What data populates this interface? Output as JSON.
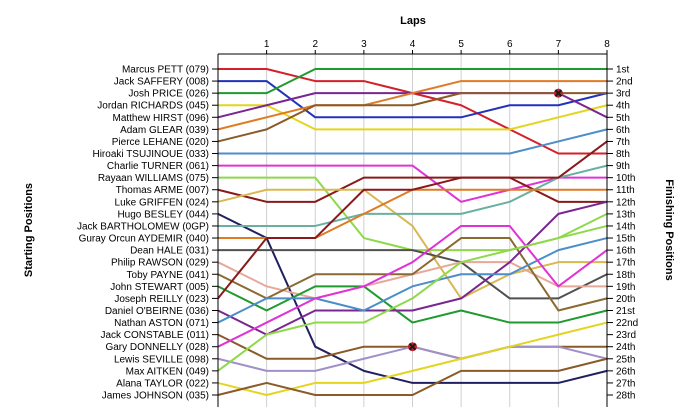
{
  "chart_data": {
    "type": "line",
    "title": "",
    "xlabel": "Laps",
    "ylabel_left": "Starting Positions",
    "ylabel_right": "Finishing Positions",
    "x": [
      0,
      1,
      2,
      3,
      4,
      5,
      6,
      7,
      8
    ],
    "x_tick_labels": [
      "1",
      "2",
      "3",
      "4",
      "5",
      "6",
      "7",
      "8"
    ],
    "xlim": [
      0,
      8
    ],
    "ylim": [
      1,
      28
    ],
    "y_reversed": true,
    "grid": "vertical",
    "finishing_labels": [
      "1st",
      "2nd",
      "3rd",
      "4th",
      "5th",
      "6th",
      "7th",
      "8th",
      "9th",
      "10th",
      "11th",
      "12th",
      "13th",
      "14th",
      "15th",
      "16th",
      "17th",
      "18th",
      "19th",
      "20th",
      "21st",
      "22nd",
      "23rd",
      "24th",
      "25th",
      "26th",
      "27th",
      "28th"
    ],
    "series": [
      {
        "name": "Marcus PETT (079)",
        "color": "#d4202a",
        "positions": [
          1,
          1,
          2,
          2,
          3,
          4,
          6,
          8,
          8
        ]
      },
      {
        "name": "Jack SAFFERY (008)",
        "color": "#2233bb",
        "positions": [
          2,
          2,
          5,
          5,
          5,
          5,
          4,
          4,
          3
        ]
      },
      {
        "name": "Josh PRICE (026)",
        "color": "#1f9a2e",
        "positions": [
          3,
          3,
          1,
          1,
          1,
          1,
          1,
          1,
          1
        ]
      },
      {
        "name": "Jordan RICHARDS (045)",
        "color": "#e3d51f",
        "positions": [
          4,
          4,
          6,
          6,
          6,
          6,
          6,
          5,
          4
        ]
      },
      {
        "name": "Matthew HIRST (096)",
        "color": "#7a2690",
        "positions": [
          5,
          4,
          3,
          3,
          3,
          3,
          3,
          3,
          5
        ]
      },
      {
        "name": "Adam GLEAR (039)",
        "color": "#e07a25",
        "positions": [
          6,
          5,
          4,
          4,
          3,
          2,
          2,
          2,
          2
        ]
      },
      {
        "name": "Pierce LEHANE (020)",
        "color": "#8a5a28",
        "positions": [
          7,
          6,
          4,
          4,
          4,
          3,
          3,
          3,
          3
        ],
        "marker": {
          "x": 7,
          "type": "x"
        }
      },
      {
        "name": "Hiroaki TSUJINOUE (033)",
        "color": "#4b8ec9",
        "positions": [
          8,
          8,
          8,
          8,
          8,
          8,
          8,
          7,
          6
        ]
      },
      {
        "name": "Charlie TURNER (061)",
        "color": "#e032d8",
        "positions": [
          9,
          9,
          9,
          9,
          9,
          12,
          11,
          10,
          10
        ]
      },
      {
        "name": "Rayaan WILLIAMS (075)",
        "color": "#8ed84a",
        "positions": [
          10,
          10,
          10,
          15,
          16,
          16,
          16,
          15,
          13
        ]
      },
      {
        "name": "Thomas ARME (007)",
        "color": "#8a1a1a",
        "positions": [
          11,
          12,
          12,
          10,
          10,
          10,
          10,
          12,
          12
        ]
      },
      {
        "name": "Luke GRIFFEN (024)",
        "color": "#d8b850",
        "positions": [
          12,
          11,
          11,
          11,
          14,
          20,
          18,
          17,
          17
        ]
      },
      {
        "name": "Hugo BESLEY (044)",
        "color": "#202060",
        "positions": [
          13,
          15,
          24,
          26,
          27,
          27,
          27,
          27,
          26
        ]
      },
      {
        "name": "Jack BARTHOLOMEW (0GP)",
        "color": "#6ab0a0",
        "positions": [
          14,
          14,
          14,
          13,
          13,
          13,
          12,
          10,
          9
        ]
      },
      {
        "name": "Guray Orcun AYDEMIR (040)",
        "color": "#e07a25",
        "positions": [
          15,
          15,
          15,
          13,
          11,
          11,
          11,
          11,
          11
        ]
      },
      {
        "name": "Dean HALE (031)",
        "color": "#505050",
        "positions": [
          16,
          16,
          16,
          16,
          16,
          17,
          20,
          20,
          18
        ]
      },
      {
        "name": "Philip RAWSON (029)",
        "color": "#e8a898",
        "positions": [
          17,
          19,
          20,
          19,
          18,
          17,
          17,
          19,
          19
        ]
      },
      {
        "name": "Toby PAYNE (041)",
        "color": "#8a6a30",
        "positions": [
          18,
          20,
          18,
          18,
          18,
          15,
          15,
          21,
          20
        ]
      },
      {
        "name": "John STEWART (005)",
        "color": "#1f9a2e",
        "positions": [
          19,
          21,
          19,
          19,
          22,
          21,
          22,
          22,
          21
        ]
      },
      {
        "name": "Joseph REILLY (023)",
        "color": "#8a1a1a",
        "positions": [
          20,
          15,
          15,
          11,
          11,
          10,
          10,
          10,
          7
        ]
      },
      {
        "name": "Daniel O'BEIRNE (036)",
        "color": "#7a2690",
        "positions": [
          21,
          23,
          21,
          21,
          21,
          20,
          17,
          13,
          12
        ]
      },
      {
        "name": "Nathan ASTON (071)",
        "color": "#4b8ec9",
        "positions": [
          22,
          20,
          20,
          21,
          19,
          18,
          18,
          16,
          15
        ]
      },
      {
        "name": "Jack CONSTABLE (011)",
        "color": "#8a5a28",
        "positions": [
          23,
          25,
          25,
          24,
          24,
          25,
          24,
          24,
          24
        ]
      },
      {
        "name": "Gary DONNELLY (028)",
        "color": "#e032d8",
        "positions": [
          24,
          22,
          20,
          19,
          17,
          14,
          14,
          19,
          16
        ]
      },
      {
        "name": "Lewis SEVILLE (098)",
        "color": "#a090c8",
        "positions": [
          25,
          26,
          26,
          25,
          24,
          25,
          24,
          24,
          25
        ],
        "marker": {
          "x": 4,
          "type": "x"
        }
      },
      {
        "name": "Max AITKEN (049)",
        "color": "#8ed84a",
        "positions": [
          26,
          23,
          22,
          22,
          20,
          17,
          16,
          15,
          14
        ]
      },
      {
        "name": "Alana TAYLOR (022)",
        "color": "#e3d51f",
        "positions": [
          27,
          28,
          27,
          27,
          26,
          25,
          24,
          23,
          22
        ]
      },
      {
        "name": "James JOHNSON (035)",
        "color": "#8a5a28",
        "positions": [
          28,
          27,
          28,
          28,
          28,
          26,
          26,
          26,
          25
        ]
      }
    ]
  }
}
